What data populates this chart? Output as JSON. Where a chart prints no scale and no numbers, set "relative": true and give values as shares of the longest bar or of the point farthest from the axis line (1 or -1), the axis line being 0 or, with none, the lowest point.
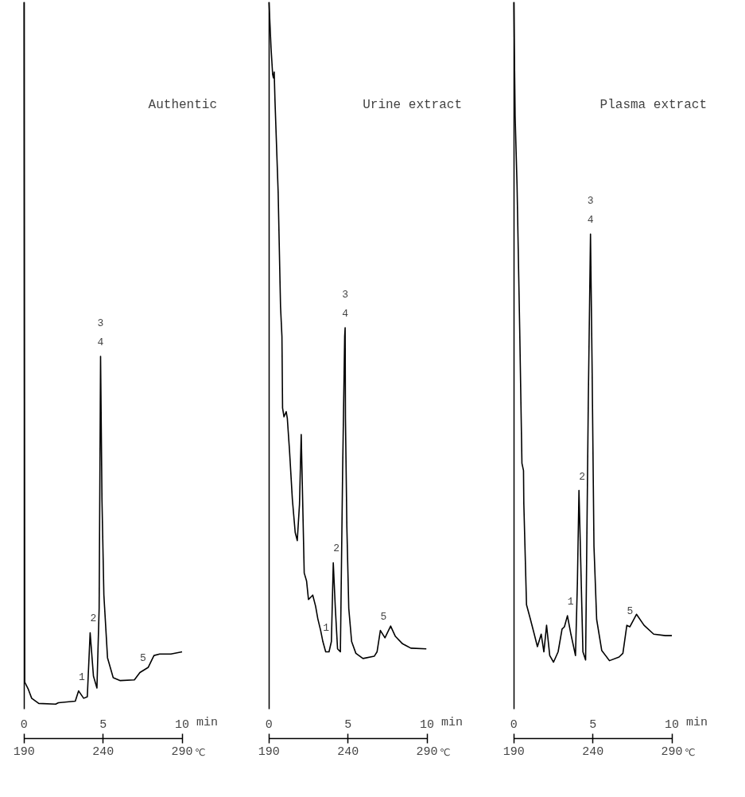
{
  "chart_data": [
    {
      "type": "line",
      "title": "Authentic",
      "relative": true,
      "xlim": [
        0,
        10
      ],
      "xticks": [
        0,
        5,
        10
      ],
      "xlabel": "min",
      "x2lim": [
        190,
        290
      ],
      "x2ticks": [
        190,
        240,
        290
      ],
      "x2label": "℃",
      "tick_labels": "x",
      "grid": false,
      "series": [
        {
          "color": "#000000",
          "x": [
            0,
            0.04,
            0.25,
            0.48,
            0.93,
            2.0,
            2.17,
            3.24,
            3.45,
            3.77,
            4.0,
            4.18,
            4.39,
            4.61,
            4.75,
            4.84,
            4.93,
            5.05,
            5.28,
            5.64,
            6.09,
            6.98,
            7.33,
            7.86,
            8.22,
            8.58,
            9.29,
            10.0
          ],
          "values": [
            1,
            0.077,
            0.068,
            0.055,
            0.048,
            0.047,
            0.049,
            0.051,
            0.065,
            0.055,
            0.057,
            0.144,
            0.085,
            0.069,
            0.177,
            0.519,
            0.324,
            0.195,
            0.11,
            0.083,
            0.079,
            0.08,
            0.09,
            0.097,
            0.113,
            0.115,
            0.115,
            0.118
          ]
        }
      ],
      "annotations": [
        {
          "text": "1",
          "x": 3.45,
          "y": 0.065
        },
        {
          "text": "2",
          "x": 4.18,
          "y": 0.144
        },
        {
          "text": "3",
          "x": 4.84,
          "y": 0.519
        },
        {
          "text": "4",
          "x": 4.84,
          "y": 0.519
        },
        {
          "text": "5",
          "x": 7.33,
          "y": 0.09
        }
      ]
    },
    {
      "type": "line",
      "title": "Urine extract",
      "relative": true,
      "xlim": [
        0,
        10
      ],
      "xticks": [
        0,
        5,
        10
      ],
      "xlabel": "min",
      "x2lim": [
        190,
        290
      ],
      "x2ticks": [
        190,
        240,
        290
      ],
      "x2label": "℃",
      "tick_labels": "x",
      "grid": false,
      "series": [
        {
          "color": "#000000",
          "x": [
            0,
            0.13,
            0.23,
            0.28,
            0.33,
            0.38,
            0.58,
            0.73,
            0.82,
            0.86,
            0.95,
            1.09,
            1.16,
            1.3,
            1.48,
            1.66,
            1.79,
            1.93,
            2.04,
            2.13,
            2.23,
            2.38,
            2.5,
            2.77,
            2.95,
            3.09,
            3.27,
            3.41,
            3.59,
            3.8,
            3.95,
            4.07,
            4.2,
            4.34,
            4.52,
            4.66,
            4.79,
            4.82,
            4.84,
            4.93,
            5.05,
            5.23,
            5.5,
            5.95,
            6.66,
            6.84,
            7.05,
            7.34,
            7.7,
            8.0,
            8.45,
            8.98,
            9.96
          ],
          "values": [
            1,
            0.938,
            0.902,
            0.897,
            0.905,
            0.866,
            0.742,
            0.587,
            0.546,
            0.449,
            0.437,
            0.444,
            0.435,
            0.391,
            0.325,
            0.28,
            0.269,
            0.318,
            0.413,
            0.325,
            0.225,
            0.214,
            0.189,
            0.195,
            0.18,
            0.163,
            0.147,
            0.132,
            0.118,
            0.118,
            0.132,
            0.239,
            0.177,
            0.122,
            0.118,
            0.361,
            0.546,
            0.558,
            0.435,
            0.287,
            0.177,
            0.132,
            0.116,
            0.109,
            0.112,
            0.118,
            0.147,
            0.137,
            0.153,
            0.139,
            0.129,
            0.123,
            0.122
          ]
        }
      ],
      "annotations": [
        {
          "text": "1",
          "x": 3.41,
          "y": 0.132
        },
        {
          "text": "2",
          "x": 4.07,
          "y": 0.239
        },
        {
          "text": "3",
          "x": 4.82,
          "y": 0.558
        },
        {
          "text": "4",
          "x": 4.82,
          "y": 0.558
        },
        {
          "text": "5",
          "x": 7.05,
          "y": 0.147
        }
      ]
    },
    {
      "type": "line",
      "title": "Plasma extract",
      "relative": true,
      "xlim": [
        0,
        10
      ],
      "xticks": [
        0,
        5,
        10
      ],
      "xlabel": "min",
      "x2lim": [
        190,
        290
      ],
      "x2ticks": [
        190,
        240,
        290
      ],
      "x2label": "℃",
      "tick_labels": "x",
      "grid": false,
      "series": [
        {
          "color": "#000000",
          "x": [
            0,
            0.03,
            0.08,
            0.2,
            0.37,
            0.51,
            0.61,
            0.63,
            0.8,
            1.05,
            1.29,
            1.49,
            1.73,
            1.9,
            2.07,
            2.27,
            2.51,
            2.8,
            3.05,
            3.2,
            3.39,
            3.61,
            3.9,
            4.02,
            4.12,
            4.22,
            4.37,
            4.54,
            4.71,
            4.85,
            4.95,
            5.07,
            5.24,
            5.56,
            6.05,
            6.66,
            6.9,
            7.15,
            7.34,
            7.76,
            8.24,
            8.85,
            9.59,
            10.0
          ],
          "values": [
            1,
            0.938,
            0.845,
            0.752,
            0.555,
            0.374,
            0.364,
            0.319,
            0.182,
            0.162,
            0.142,
            0.125,
            0.142,
            0.118,
            0.154,
            0.113,
            0.104,
            0.118,
            0.149,
            0.152,
            0.167,
            0.142,
            0.113,
            0.211,
            0.337,
            0.251,
            0.118,
            0.107,
            0.457,
            0.685,
            0.506,
            0.261,
            0.162,
            0.12,
            0.106,
            0.111,
            0.116,
            0.154,
            0.152,
            0.169,
            0.154,
            0.142,
            0.14,
            0.14
          ]
        }
      ],
      "annotations": [
        {
          "text": "1",
          "x": 3.39,
          "y": 0.167
        },
        {
          "text": "2",
          "x": 4.12,
          "y": 0.337
        },
        {
          "text": "3",
          "x": 4.85,
          "y": 0.685
        },
        {
          "text": "4",
          "x": 4.85,
          "y": 0.685
        },
        {
          "text": "5",
          "x": 7.15,
          "y": 0.154
        }
      ]
    }
  ]
}
